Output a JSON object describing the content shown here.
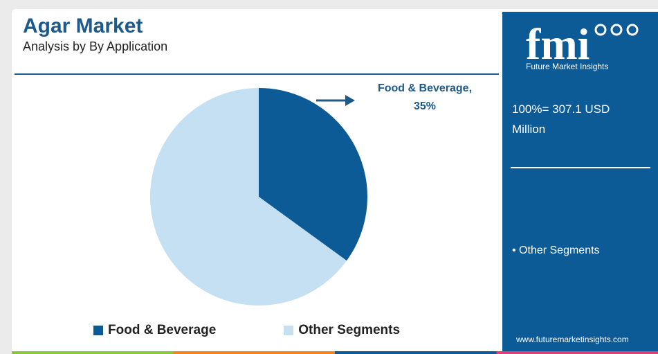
{
  "header": {
    "title": "Agar Market",
    "subtitle": "Analysis by By Application"
  },
  "chart_data": {
    "type": "pie",
    "categories": [
      "Food & Beverage",
      "Other Segments"
    ],
    "values": [
      35,
      65
    ],
    "colors": [
      "#0c5b97",
      "#c5e0f3"
    ],
    "annotations": [
      {
        "label": "Food & Beverage,",
        "value_label": "35%"
      }
    ],
    "legend_position": "bottom"
  },
  "legend": {
    "items": [
      {
        "label": "Food & Beverage",
        "color": "#0c5b97"
      },
      {
        "label": "Other Segments",
        "color": "#c5e0f3"
      }
    ]
  },
  "panel": {
    "logo_text": "fmi",
    "logo_caption": "Future Market Insights",
    "total_line1": "100%= 307.1 USD",
    "total_line2": "Million",
    "bullet": "• Other Segments",
    "website": "www.futuremarketinsights.com",
    "background": "#0c5b97"
  }
}
